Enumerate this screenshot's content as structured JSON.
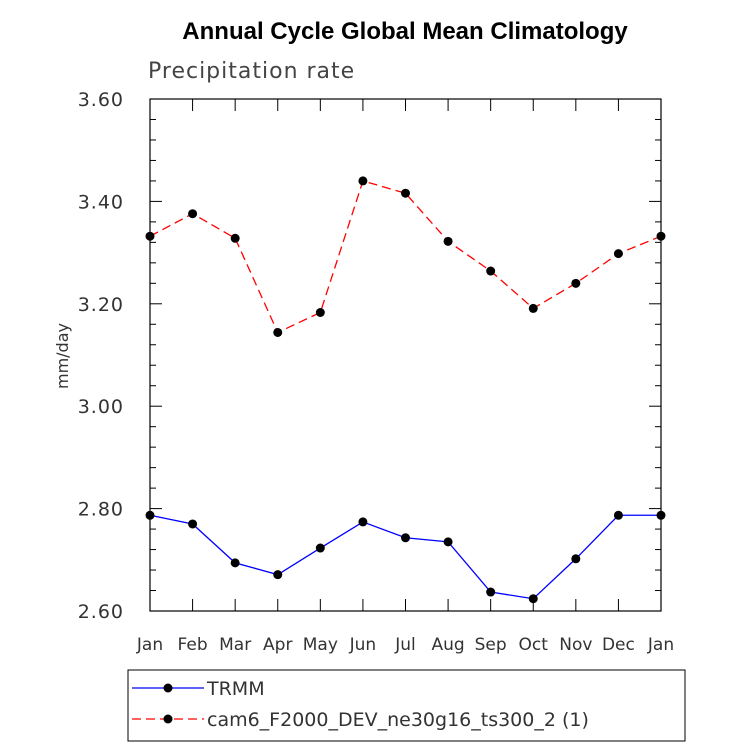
{
  "chart_data": {
    "type": "line",
    "title": "Annual Cycle Global Mean Climatology",
    "subtitle": "Precipitation rate",
    "xlabel": "",
    "ylabel": "mm/day",
    "categories": [
      "Jan",
      "Feb",
      "Mar",
      "Apr",
      "May",
      "Jun",
      "Jul",
      "Aug",
      "Sep",
      "Oct",
      "Nov",
      "Dec",
      "Jan"
    ],
    "ylim": [
      2.6,
      3.6
    ],
    "yticks": [
      "2.60",
      "2.80",
      "3.00",
      "3.20",
      "3.40",
      "3.60"
    ],
    "grid": false,
    "legend_position": "bottom",
    "series": [
      {
        "name": "TRMM",
        "color": "#0000ff",
        "dash": "solid",
        "values": [
          2.787,
          2.77,
          2.694,
          2.671,
          2.723,
          2.774,
          2.743,
          2.735,
          2.637,
          2.624,
          2.702,
          2.787,
          2.787
        ]
      },
      {
        "name": "cam6_F2000_DEV_ne30g16_ts300_2 (1)",
        "color": "#ff0000",
        "dash": "dashed",
        "values": [
          3.332,
          3.376,
          3.328,
          3.144,
          3.183,
          3.44,
          3.416,
          3.322,
          3.264,
          3.191,
          3.24,
          3.298,
          3.332
        ]
      }
    ]
  }
}
